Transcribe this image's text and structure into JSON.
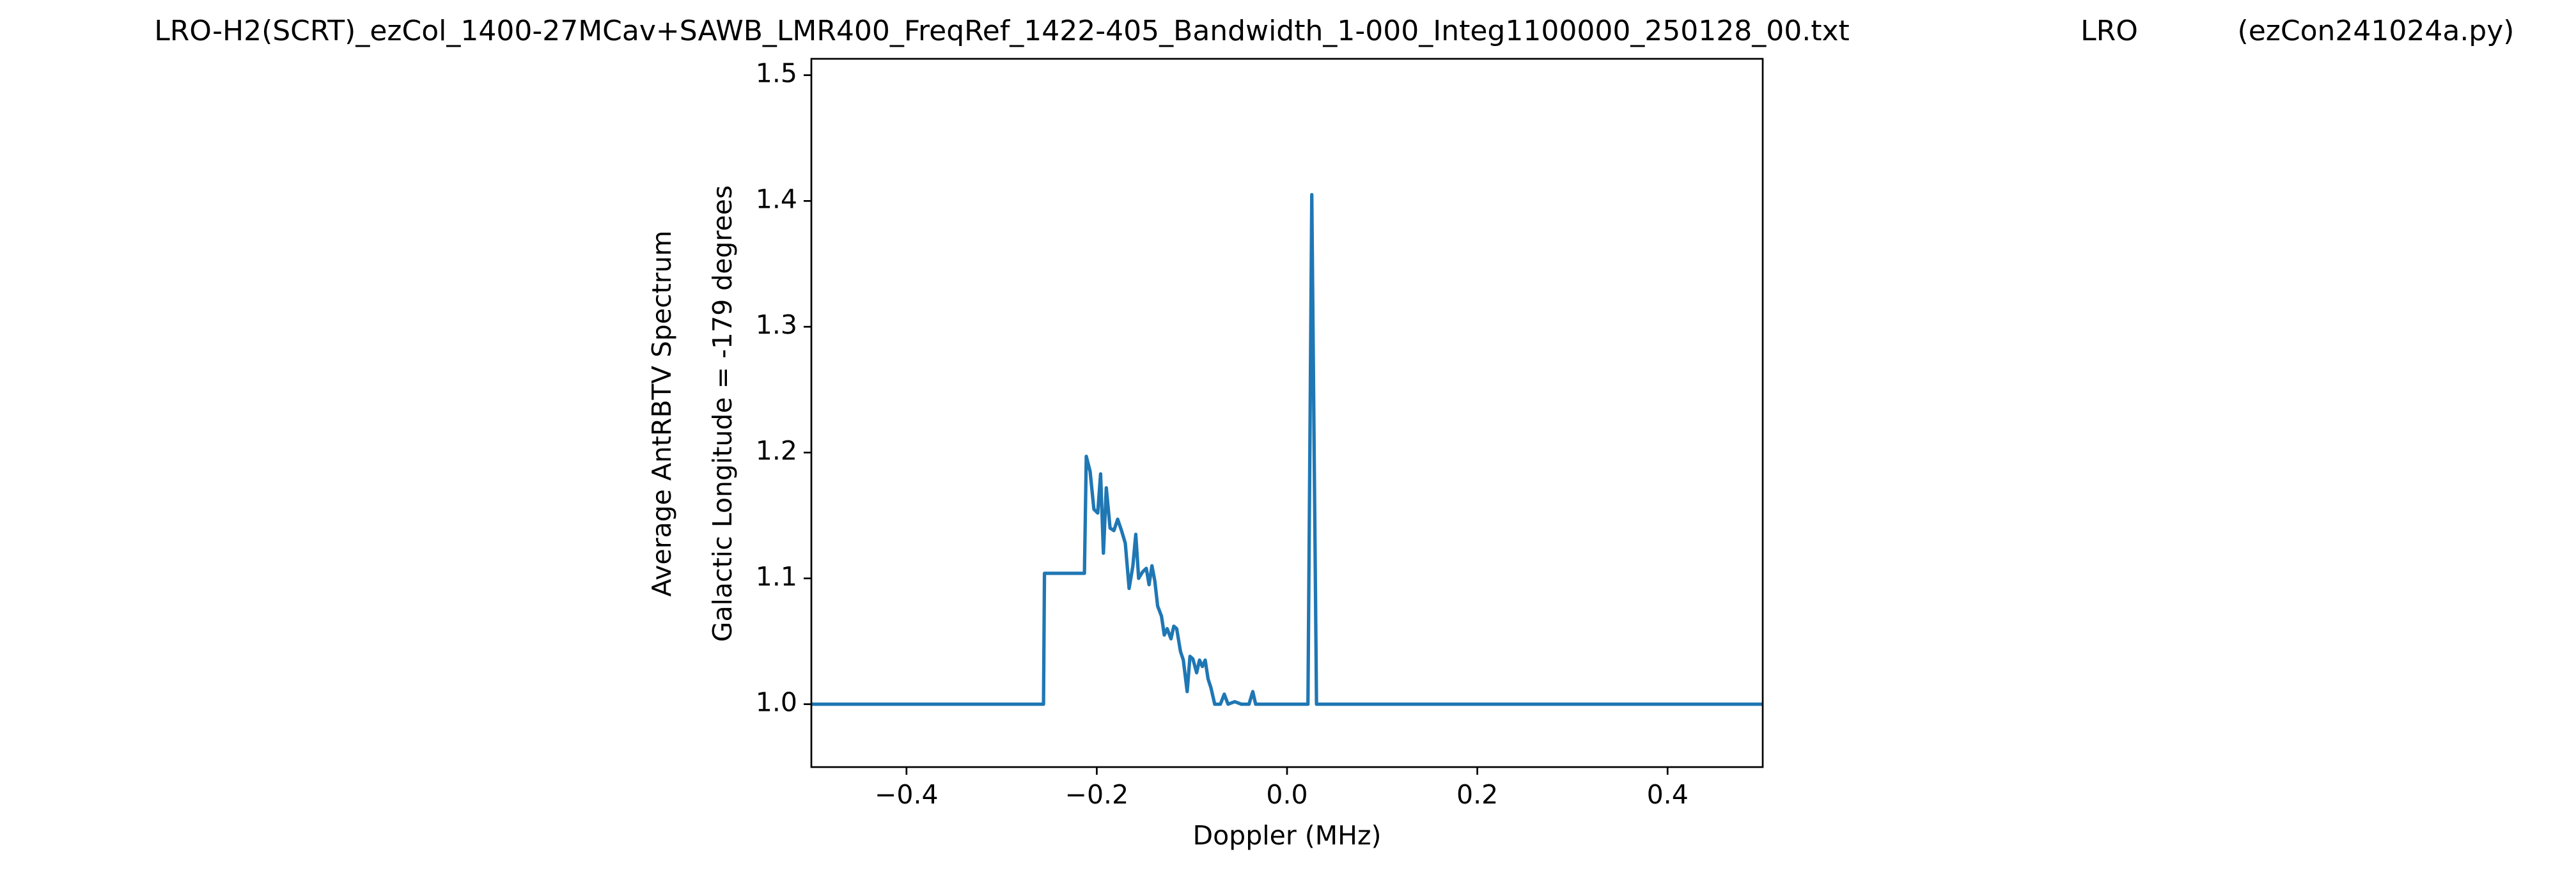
{
  "chart_data": {
    "type": "line",
    "title": [
      "LRO-H2(SCRT)_ezCol_1400-27MCav+SAWB_LMR400_FreqRef_1422-405_Bandwidth_1-000_Integ1100000_250128_00.txt",
      "LRO",
      "(ezCon241024a.py)"
    ],
    "ylabel": [
      "Average AntRBTV Spectrum",
      "Galactic Longitude = -179 degrees"
    ],
    "xlabel": "Doppler (MHz)",
    "color": "#1f77b4",
    "x": [
      -0.5,
      -0.256,
      -0.255,
      -0.213,
      -0.211,
      -0.207,
      -0.203,
      -0.199,
      -0.196,
      -0.193,
      -0.19,
      -0.186,
      -0.182,
      -0.178,
      -0.174,
      -0.17,
      -0.166,
      -0.162,
      -0.159,
      -0.156,
      -0.152,
      -0.148,
      -0.145,
      -0.142,
      -0.139,
      -0.136,
      -0.132,
      -0.129,
      -0.126,
      -0.122,
      -0.119,
      -0.116,
      -0.112,
      -0.109,
      -0.105,
      -0.102,
      -0.099,
      -0.095,
      -0.092,
      -0.089,
      -0.086,
      -0.083,
      -0.08,
      -0.076,
      -0.07,
      -0.066,
      -0.062,
      -0.055,
      -0.048,
      -0.04,
      -0.036,
      -0.033,
      -0.02,
      0.022,
      0.026,
      0.031,
      0.5
    ],
    "values": [
      1.0,
      1.0,
      1.104,
      1.104,
      1.197,
      1.185,
      1.155,
      1.152,
      1.183,
      1.12,
      1.172,
      1.14,
      1.138,
      1.147,
      1.138,
      1.128,
      1.092,
      1.11,
      1.135,
      1.1,
      1.105,
      1.108,
      1.095,
      1.11,
      1.098,
      1.078,
      1.07,
      1.055,
      1.06,
      1.052,
      1.062,
      1.06,
      1.042,
      1.035,
      1.01,
      1.038,
      1.036,
      1.025,
      1.035,
      1.03,
      1.035,
      1.02,
      1.013,
      1.0,
      1.0,
      1.008,
      1.0,
      1.002,
      1.0,
      1.0,
      1.01,
      1.0,
      1.0,
      1.0,
      1.405,
      1.0,
      1.0
    ],
    "xlim": [
      -0.5,
      0.5
    ],
    "xticks": [
      {
        "value": -0.4,
        "label": "−0.4"
      },
      {
        "value": -0.2,
        "label": "−0.2"
      },
      {
        "value": 0,
        "label": "0.0"
      },
      0.2,
      0.4
    ],
    "ylim": [
      0.95,
      1.513
    ],
    "yticks": [
      {
        "value": 1,
        "label": "1.0"
      },
      1.1,
      1.2,
      1.3,
      1.4,
      1.5
    ]
  }
}
